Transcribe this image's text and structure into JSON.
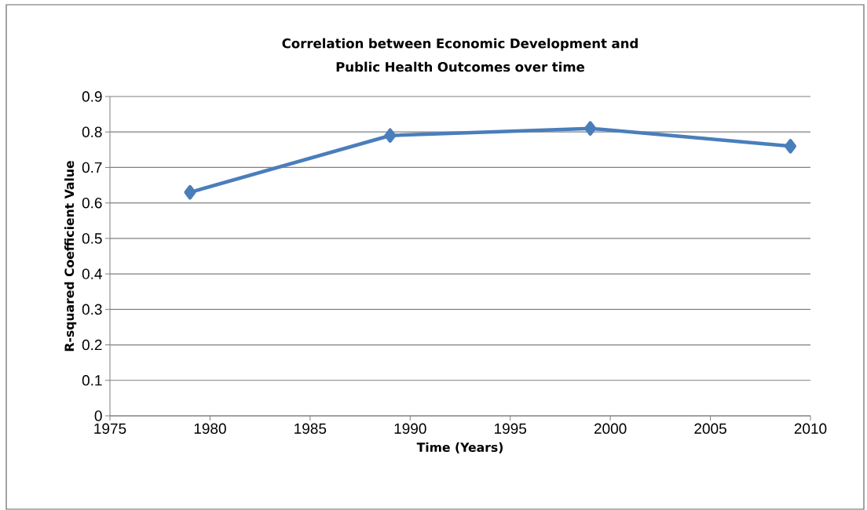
{
  "chart_data": {
    "type": "line",
    "title": "Correlation between Economic Development and\nPublic Health Outcomes over time",
    "xlabel": "Time (Years)",
    "ylabel": "R-squared Coefficient Value",
    "x": [
      1979,
      1989,
      1999,
      2009
    ],
    "series": [
      {
        "color": "#4a7ebb",
        "values": [
          0.63,
          0.79,
          0.81,
          0.76
        ]
      }
    ],
    "xlim": [
      1975,
      2010
    ],
    "xticks": [
      1975,
      1980,
      1985,
      1990,
      1995,
      2000,
      2005,
      2010
    ],
    "ylim": [
      0,
      0.9
    ],
    "yticks": [
      0,
      0.1,
      0.2,
      0.3,
      0.4,
      0.5,
      0.6,
      0.7,
      0.8,
      0.9
    ],
    "grid": "y",
    "marker": "diamond",
    "line_style": "solid"
  }
}
